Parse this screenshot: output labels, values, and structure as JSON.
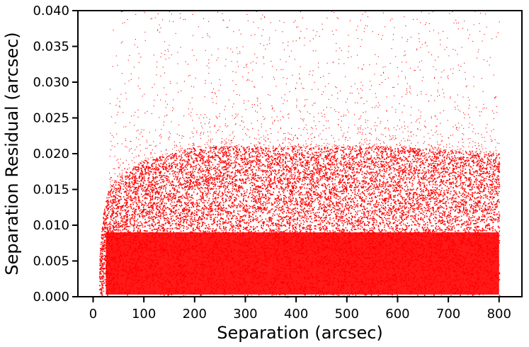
{
  "chart_data": {
    "type": "scatter",
    "xlabel": "Separation (arcsec)",
    "ylabel": "Separation Residual (arcsec)",
    "xlim": [
      -30,
      845
    ],
    "ylim": [
      0,
      0.04
    ],
    "xticks": [
      0,
      100,
      200,
      300,
      400,
      500,
      600,
      700,
      800
    ],
    "xtick_labels": [
      "0",
      "100",
      "200",
      "300",
      "400",
      "500",
      "600",
      "700",
      "800"
    ],
    "yticks": [
      0.0,
      0.005,
      0.01,
      0.015,
      0.02,
      0.025,
      0.03,
      0.035,
      0.04
    ],
    "ytick_labels": [
      "0.000",
      "0.005",
      "0.010",
      "0.015",
      "0.020",
      "0.025",
      "0.030",
      "0.035",
      "0.040"
    ],
    "grid": false,
    "marker_color": "#ff0000",
    "point_density": {
      "x_range": [
        12,
        800
      ],
      "bulk_y_max_by_x": [
        [
          12,
          0.006
        ],
        [
          20,
          0.012
        ],
        [
          30,
          0.015
        ],
        [
          50,
          0.017
        ],
        [
          100,
          0.019
        ],
        [
          200,
          0.021
        ],
        [
          400,
          0.021
        ],
        [
          600,
          0.021
        ],
        [
          800,
          0.02
        ]
      ],
      "sparse_outlier_y_max": 0.04,
      "dense_core_y_range": [
        0.0,
        0.012
      ],
      "dense_core_x_range": [
        200,
        700
      ]
    }
  }
}
